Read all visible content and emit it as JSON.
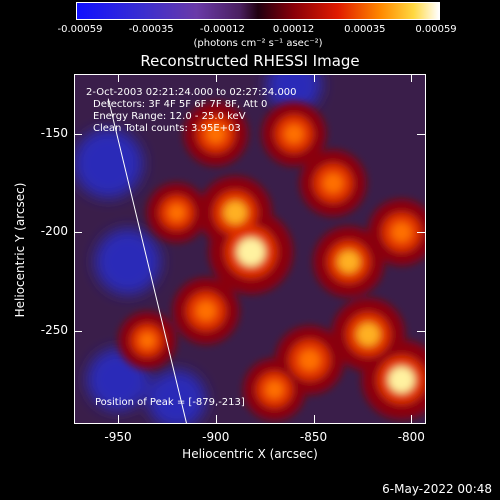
{
  "colorbar": {
    "tick_labels": [
      "-0.00059",
      "-0.00035",
      "-0.00012",
      "0.00012",
      "0.00035",
      "0.00059"
    ],
    "unit_label": "(photons cm⁻² s⁻¹ asec⁻²)"
  },
  "title": "Reconstructed RHESSI Image",
  "annotations": {
    "time": "2-Oct-2003 02:21:24.000 to 02:27:24.000",
    "detectors": "Detectors: 3F 4F 5F 6F 7F 8F, Att 0",
    "energy": "Energy Range: 12.0 - 25.0 keV",
    "clean": "Clean    Total counts: 3.95E+03",
    "peak": "Position of Peak = [-879,-213]"
  },
  "footer": "6-May-2022 00:48",
  "chart_data": {
    "type": "heatmap",
    "title": "Reconstructed RHESSI Image",
    "xlabel": "Heliocentric X (arcsec)",
    "ylabel": "Heliocentric Y (arcsec)",
    "x_ticks": [
      "-950",
      "-900",
      "-850",
      "-800"
    ],
    "y_ticks": [
      "-150",
      "-200",
      "-250"
    ],
    "xlim": [
      -972,
      -793
    ],
    "ylim": [
      -297,
      -120
    ],
    "colorbar_range": [
      -0.00059,
      0.00059
    ],
    "peak_position": [
      -879,
      -213
    ],
    "limb_line": [
      [
        -955,
        -132
      ],
      [
        -915,
        -297
      ]
    ],
    "bright_sources": [
      {
        "x": -882,
        "y": -210,
        "level": 1.0
      },
      {
        "x": -890,
        "y": -190,
        "level": 0.75
      },
      {
        "x": -905,
        "y": -240,
        "level": 0.6
      },
      {
        "x": -860,
        "y": -150,
        "level": 0.55
      },
      {
        "x": -840,
        "y": -175,
        "level": 0.6
      },
      {
        "x": -832,
        "y": -215,
        "level": 0.7
      },
      {
        "x": -822,
        "y": -252,
        "level": 0.75
      },
      {
        "x": -805,
        "y": -275,
        "level": 0.9
      },
      {
        "x": -852,
        "y": -265,
        "level": 0.65
      },
      {
        "x": -900,
        "y": -150,
        "level": 0.55
      },
      {
        "x": -920,
        "y": -190,
        "level": 0.45
      },
      {
        "x": -935,
        "y": -255,
        "level": 0.4
      },
      {
        "x": -805,
        "y": -200,
        "level": 0.6
      },
      {
        "x": -870,
        "y": -280,
        "level": 0.5
      }
    ],
    "dark_sources": [
      {
        "x": -955,
        "y": -165,
        "level": 0.7
      },
      {
        "x": -945,
        "y": -215,
        "level": 0.6
      },
      {
        "x": -950,
        "y": -275,
        "level": 0.5
      },
      {
        "x": -920,
        "y": -285,
        "level": 0.4
      },
      {
        "x": -860,
        "y": -125,
        "level": 0.3
      }
    ]
  }
}
